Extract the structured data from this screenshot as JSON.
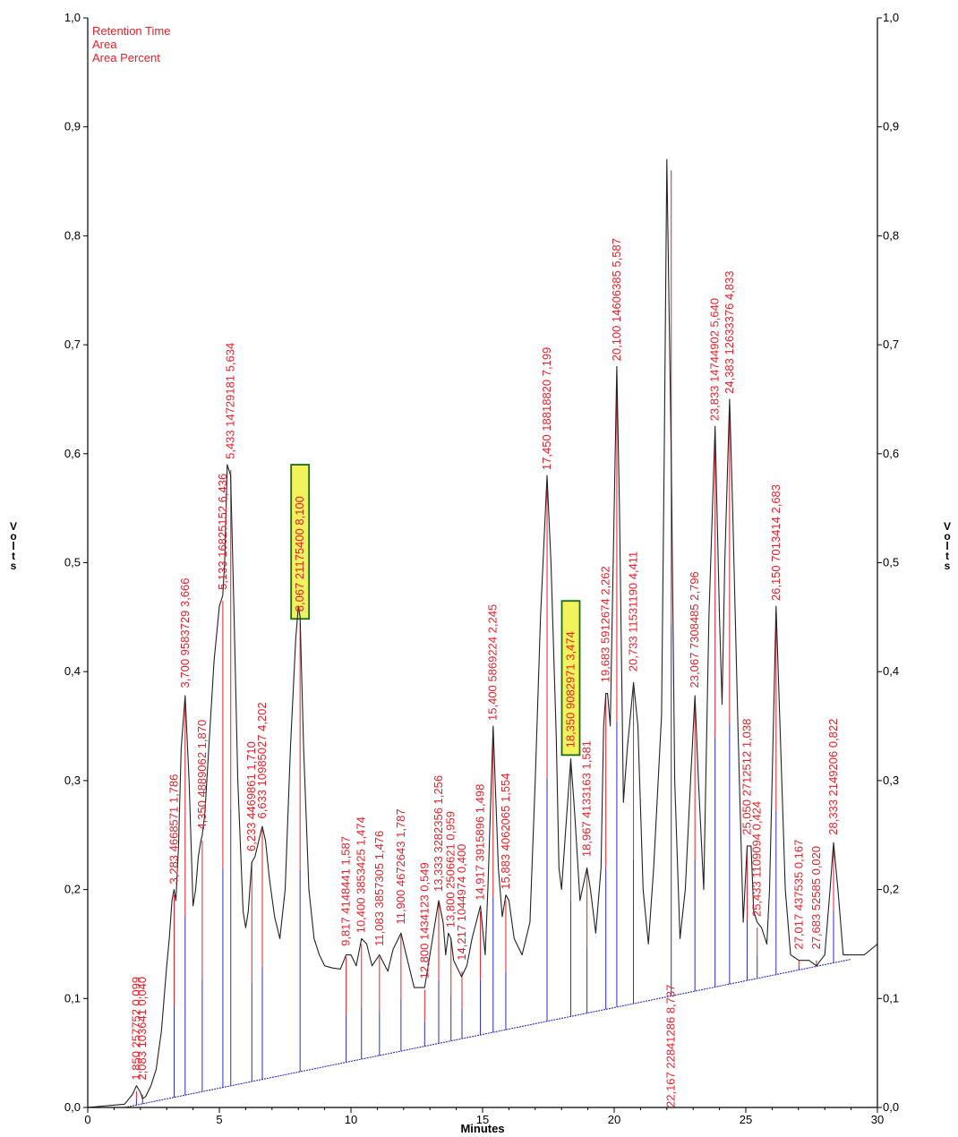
{
  "chart_data": {
    "type": "line",
    "xlabel": "Minutes",
    "ylabel_left": "Volts",
    "ylabel_right": "Volts",
    "xlim": [
      0,
      30
    ],
    "ylim": [
      0,
      1
    ],
    "x_ticks": [
      "0",
      "5",
      "10",
      "15",
      "20",
      "25",
      "30"
    ],
    "y_ticks": [
      "0,0",
      "0,1",
      "0,2",
      "0,3",
      "0,4",
      "0,5",
      "0,6",
      "0,7",
      "0,8",
      "0,9",
      "1,0"
    ],
    "legend": [
      "Retention Time",
      "Area",
      "Area Percent"
    ],
    "colors": {
      "trace": "#222222",
      "labels": "#e8202a",
      "baseline": "#2b2bcc",
      "highlight": "#f2f25a",
      "box": "#1a6b1a"
    },
    "trace": {
      "x": [
        0,
        1.4,
        1.7,
        1.85,
        2.0,
        2.08,
        2.2,
        2.4,
        2.6,
        2.8,
        3.0,
        3.1,
        3.2,
        3.28,
        3.35,
        3.45,
        3.55,
        3.7,
        3.85,
        4.0,
        4.1,
        4.2,
        4.3,
        4.35,
        4.45,
        4.6,
        4.8,
        5.0,
        5.13,
        5.2,
        5.3,
        5.43,
        5.55,
        5.7,
        5.9,
        6.0,
        6.1,
        6.23,
        6.35,
        6.5,
        6.63,
        6.75,
        6.9,
        7.1,
        7.3,
        7.5,
        7.7,
        7.9,
        8.0,
        8.067,
        8.2,
        8.4,
        8.6,
        8.8,
        9.0,
        9.3,
        9.6,
        9.817,
        10.0,
        10.2,
        10.4,
        10.6,
        10.8,
        11.083,
        11.4,
        11.6,
        11.9,
        12.1,
        12.4,
        12.8,
        13.1,
        13.333,
        13.5,
        13.6,
        13.7,
        13.8,
        13.9,
        14.0,
        14.2,
        14.4,
        14.6,
        14.917,
        15.1,
        15.2,
        15.4,
        15.6,
        15.75,
        15.883,
        16.0,
        16.2,
        16.5,
        16.8,
        17.0,
        17.2,
        17.45,
        17.6,
        17.8,
        17.9,
        18.0,
        18.2,
        18.35,
        18.5,
        18.7,
        18.967,
        19.1,
        19.3,
        19.5,
        19.6,
        19.683,
        19.75,
        19.85,
        20.0,
        20.1,
        20.2,
        20.35,
        20.5,
        20.733,
        20.9,
        21.1,
        21.3,
        21.5,
        21.8,
        21.9,
        22.0,
        22.167,
        22.3,
        22.5,
        22.7,
        22.9,
        23.067,
        23.2,
        23.4,
        23.6,
        23.833,
        24.0,
        24.1,
        24.2,
        24.383,
        24.5,
        24.7,
        24.9,
        25.05,
        25.2,
        25.3,
        25.433,
        25.6,
        25.8,
        25.9,
        26.0,
        26.15,
        26.3,
        26.5,
        26.7,
        27.017,
        27.4,
        27.683,
        28.0,
        28.2,
        28.333,
        28.5,
        28.7,
        29.0,
        29.5,
        30.0
      ],
      "y": [
        0,
        0.003,
        0.012,
        0.02,
        0.014,
        0.008,
        0.01,
        0.02,
        0.035,
        0.07,
        0.13,
        0.155,
        0.19,
        0.2,
        0.19,
        0.24,
        0.33,
        0.378,
        0.3,
        0.185,
        0.2,
        0.23,
        0.245,
        0.25,
        0.27,
        0.33,
        0.41,
        0.46,
        0.47,
        0.5,
        0.59,
        0.58,
        0.46,
        0.3,
        0.18,
        0.165,
        0.18,
        0.225,
        0.23,
        0.245,
        0.258,
        0.245,
        0.21,
        0.175,
        0.155,
        0.2,
        0.33,
        0.43,
        0.46,
        0.45,
        0.33,
        0.2,
        0.155,
        0.14,
        0.13,
        0.128,
        0.127,
        0.14,
        0.14,
        0.13,
        0.155,
        0.15,
        0.13,
        0.14,
        0.125,
        0.145,
        0.16,
        0.14,
        0.11,
        0.11,
        0.155,
        0.19,
        0.17,
        0.14,
        0.16,
        0.155,
        0.135,
        0.13,
        0.12,
        0.13,
        0.155,
        0.185,
        0.14,
        0.2,
        0.35,
        0.22,
        0.175,
        0.195,
        0.19,
        0.155,
        0.14,
        0.17,
        0.3,
        0.45,
        0.58,
        0.5,
        0.34,
        0.22,
        0.2,
        0.27,
        0.32,
        0.27,
        0.19,
        0.22,
        0.2,
        0.16,
        0.22,
        0.35,
        0.38,
        0.38,
        0.35,
        0.55,
        0.68,
        0.55,
        0.28,
        0.33,
        0.39,
        0.35,
        0.2,
        0.15,
        0.22,
        0.36,
        0.6,
        0.87,
        0.6,
        0.3,
        0.155,
        0.2,
        0.3,
        0.378,
        0.3,
        0.2,
        0.45,
        0.625,
        0.45,
        0.37,
        0.5,
        0.65,
        0.55,
        0.35,
        0.17,
        0.24,
        0.24,
        0.18,
        0.17,
        0.165,
        0.15,
        0.2,
        0.3,
        0.46,
        0.35,
        0.2,
        0.14,
        0.135,
        0.135,
        0.13,
        0.14,
        0.2,
        0.243,
        0.2,
        0.14,
        0.14,
        0.14,
        0.15
      ]
    },
    "baseline": {
      "x": [
        1.4,
        29.0
      ],
      "y": [
        0,
        0.136
      ]
    },
    "peaks": [
      {
        "rt": 1.85,
        "label": "1,850  257752  0,099",
        "marker_top": 0.015,
        "label_bottom": 0.025
      },
      {
        "rt": 2.083,
        "label": "2,083  103641  0,040",
        "marker_top": 0.012,
        "label_bottom": 0.025
      },
      {
        "rt": 3.283,
        "label": "3,283  4668571  1,786",
        "marker_top": 0.195,
        "label_bottom": 0.205
      },
      {
        "rt": 3.7,
        "label": "3,700  9583729  3,666",
        "marker_top": 0.375,
        "label_bottom": 0.385
      },
      {
        "rt": 4.35,
        "label": "4,350  4889062  1,870",
        "marker_top": 0.245,
        "label_bottom": 0.255
      },
      {
        "rt": 5.133,
        "label": "5,133  16825152  6,436",
        "marker_top": 0.465,
        "label_bottom": 0.475
      },
      {
        "rt": 5.433,
        "label": "5,433  14729181  5,634",
        "marker_top": 0.585,
        "label_bottom": 0.595
      },
      {
        "rt": 6.233,
        "label": "6,233  4469861  1,710",
        "marker_top": 0.225,
        "label_bottom": 0.235
      },
      {
        "rt": 6.633,
        "label": "6,633  10985027  4,202",
        "marker_top": 0.255,
        "label_bottom": 0.265
      },
      {
        "rt": 8.067,
        "label": "8,067  21175400  8,100",
        "marker_top": 0.445,
        "label_bottom": 0.455,
        "highlight": true
      },
      {
        "rt": 9.817,
        "label": "9,817  4148441  1,587",
        "marker_top": 0.138,
        "label_bottom": 0.148
      },
      {
        "rt": 10.4,
        "label": "10,400  3853425  1,474",
        "marker_top": 0.15,
        "label_bottom": 0.16
      },
      {
        "rt": 11.083,
        "label": "11,083  3857305  1,476",
        "marker_top": 0.138,
        "label_bottom": 0.148
      },
      {
        "rt": 11.9,
        "label": "11,900  4672643  1,787",
        "marker_top": 0.158,
        "label_bottom": 0.168
      },
      {
        "rt": 12.8,
        "label": "12,800  1434123  0,549",
        "marker_top": 0.108,
        "label_bottom": 0.118
      },
      {
        "rt": 13.333,
        "label": "13,333  3282356  1,256",
        "marker_top": 0.188,
        "label_bottom": 0.198
      },
      {
        "rt": 13.8,
        "label": "13,800  2506621  0,959",
        "marker_top": 0.155,
        "label_bottom": 0.165
      },
      {
        "rt": 14.217,
        "label": "14,217  1044974  0,400",
        "marker_top": 0.125,
        "label_bottom": 0.135
      },
      {
        "rt": 14.917,
        "label": "14,917  3915896  1,498",
        "marker_top": 0.18,
        "label_bottom": 0.19
      },
      {
        "rt": 15.4,
        "label": "15,400  5869224  2,245",
        "marker_top": 0.345,
        "label_bottom": 0.355
      },
      {
        "rt": 15.883,
        "label": "15,883  4062065  1,554",
        "marker_top": 0.19,
        "label_bottom": 0.2
      },
      {
        "rt": 17.45,
        "label": "17,450  18818820  7,199",
        "marker_top": 0.575,
        "label_bottom": 0.585
      },
      {
        "rt": 18.35,
        "label": "18,350  9082971  3,474",
        "marker_top": 0.32,
        "label_bottom": 0.33,
        "highlight": true
      },
      {
        "rt": 18.967,
        "label": "18,967  4133163  1,581",
        "marker_top": 0.22,
        "label_bottom": 0.23
      },
      {
        "rt": 19.683,
        "label": "19,683  5912674  2,262",
        "marker_top": 0.38,
        "label_bottom": 0.39
      },
      {
        "rt": 20.1,
        "label": "20,100  14606385  5,587",
        "marker_top": 0.675,
        "label_bottom": 0.685
      },
      {
        "rt": 20.733,
        "label": "20,733  11531190  4,411",
        "marker_top": 0.39,
        "label_bottom": 0.4
      },
      {
        "rt": 22.167,
        "label": "22,167  22841286  8,737",
        "marker_top": 0.86,
        "label_bottom": 0.0
      },
      {
        "rt": 23.067,
        "label": "23,067  7308485  2,796",
        "marker_top": 0.375,
        "label_bottom": 0.385
      },
      {
        "rt": 23.833,
        "label": "23,833  14744902  5,640",
        "marker_top": 0.62,
        "label_bottom": 0.63
      },
      {
        "rt": 24.383,
        "label": "24,383  12633376  4,833",
        "marker_top": 0.645,
        "label_bottom": 0.655
      },
      {
        "rt": 25.05,
        "label": "25,050  2712512  1,038",
        "marker_top": 0.24,
        "label_bottom": 0.25
      },
      {
        "rt": 25.433,
        "label": "25,433  1109094  0,424",
        "marker_top": 0.165,
        "label_bottom": 0.175
      },
      {
        "rt": 26.15,
        "label": "26,150  7013414  2,683",
        "marker_top": 0.455,
        "label_bottom": 0.465
      },
      {
        "rt": 27.017,
        "label": "27,017  437535  0,167",
        "marker_top": 0.135,
        "label_bottom": 0.145
      },
      {
        "rt": 27.683,
        "label": "27,683  52585  0,020",
        "marker_top": 0.135,
        "label_bottom": 0.145
      },
      {
        "rt": 28.333,
        "label": "28,333  2149206  0,822",
        "marker_top": 0.24,
        "label_bottom": 0.25
      }
    ]
  }
}
